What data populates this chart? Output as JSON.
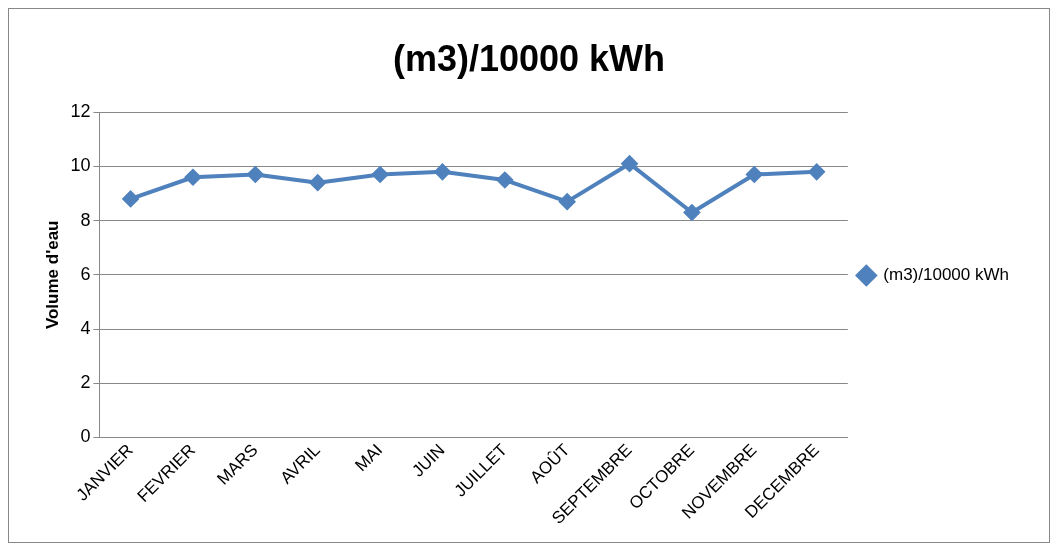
{
  "chart_data": {
    "type": "line",
    "title": "(m3)/10000 kWh",
    "ylabel": "Volume d'eau",
    "categories": [
      "JANVIER",
      "FEVRIER",
      "MARS",
      "AVRIL",
      "MAI",
      "JUIN",
      "JUILLET",
      "AOÛT",
      "SEPTEMBRE",
      "OCTOBRE",
      "NOVEMBRE",
      "DECEMBRE"
    ],
    "series": [
      {
        "name": "(m3)/10000 kWh",
        "color": "#4f81bd",
        "values": [
          8.8,
          9.6,
          9.7,
          9.4,
          9.7,
          9.8,
          9.5,
          8.7,
          10.1,
          8.3,
          9.7,
          9.8
        ]
      }
    ],
    "ylim": [
      0,
      12
    ],
    "yticks": [
      0,
      2,
      4,
      6,
      8,
      10,
      12
    ],
    "grid": "y",
    "legend": "right",
    "marker": "diamond",
    "line_style": "solid"
  }
}
